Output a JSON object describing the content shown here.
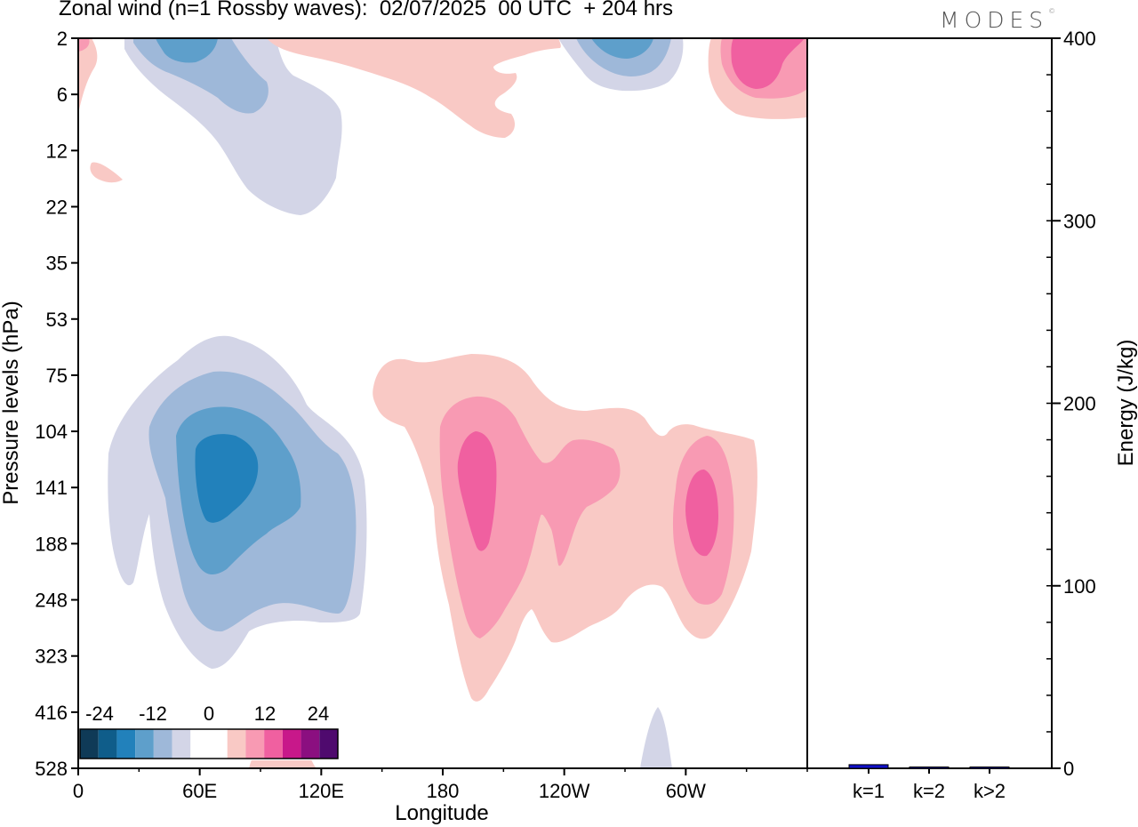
{
  "title": "Zonal wind (n=1 Rossby waves):  02/07/2025  00 UTC  + 204 hrs",
  "brand": "MODES",
  "brand_mark": "©",
  "colors": {
    "neg": [
      "#0f3a57",
      "#0f5d8a",
      "#2281bb",
      "#5e9fcb",
      "#9eb8d9",
      "#d3d5e7"
    ],
    "zero": "#ffffff",
    "pos": [
      "#f9c9c5",
      "#f89ab3",
      "#f060a0",
      "#c8188a",
      "#8b0f80",
      "#4f0a6e"
    ],
    "bar": "#1010c8"
  },
  "chart_data": [
    {
      "type": "heatmap",
      "title": "Zonal wind (n=1 Rossby waves):  02/07/2025  00 UTC  + 204 hrs",
      "xlabel": "Longitude",
      "ylabel": "Pressure levels (hPa)",
      "x_ticks": [
        "0",
        "60E",
        "120E",
        "180",
        "120W",
        "60W"
      ],
      "y_ticks": [
        "2",
        "6",
        "12",
        "22",
        "35",
        "53",
        "75",
        "104",
        "141",
        "188",
        "248",
        "323",
        "416",
        "528"
      ],
      "colorbar_labels": [
        "-24",
        "-12",
        "0",
        "12",
        "24"
      ],
      "colorbar_levels": [
        -30,
        -25,
        -20,
        -15,
        -10,
        -5,
        -2.5,
        2.5,
        5,
        10,
        15,
        20,
        25,
        30
      ],
      "features": [
        {
          "name": "negative maximum",
          "lon": 70,
          "pressure": 141,
          "value": -20
        },
        {
          "name": "positive maximum",
          "lon": 195,
          "pressure": 141,
          "value": 12
        },
        {
          "name": "positive maximum",
          "lon": 290,
          "pressure": 160,
          "value": 12
        },
        {
          "name": "upper negative",
          "lon": 55,
          "pressure": 2,
          "value": -15
        },
        {
          "name": "upper negative",
          "lon": 255,
          "pressure": 2,
          "value": -15
        },
        {
          "name": "upper positive",
          "lon": 335,
          "pressure": 3,
          "value": 12
        }
      ]
    },
    {
      "type": "bar",
      "categories": [
        "k=1",
        "k=2",
        "k>2"
      ],
      "values": [
        2,
        0.3,
        0.5
      ],
      "ylabel": "Energy (J/kg)",
      "ylim": [
        0,
        400
      ],
      "y_ticks": [
        "0",
        "100",
        "200",
        "300",
        "400"
      ]
    }
  ]
}
